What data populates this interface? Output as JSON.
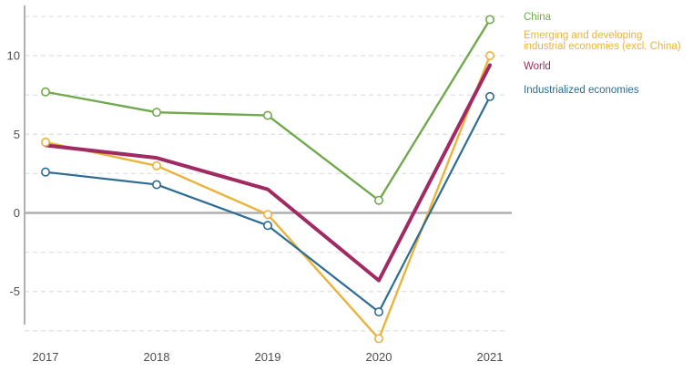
{
  "chart_data": {
    "type": "line",
    "title": "",
    "xlabel": "",
    "ylabel": "",
    "x_labels": [
      "2017",
      "2018",
      "2019",
      "2020",
      "2021"
    ],
    "y_tick_labels": [
      {
        "value": 10,
        "label": "10"
      },
      {
        "value": 5,
        "label": "5"
      },
      {
        "value": 0,
        "label": "0"
      },
      {
        "value": -5,
        "label": "-5"
      }
    ],
    "gridlines": [
      12.5,
      10,
      7.5,
      5,
      2.5,
      -2.5,
      -5,
      -7.5
    ],
    "ylim": [
      -8.5,
      13.5
    ],
    "grid": "dashed-horizontal",
    "legend_position": "right",
    "colors": {
      "grid": "#E2E2E2",
      "axis": "#B0B0B0",
      "tick_text": "#4D4D4D",
      "marker_fill": "#FFFFFF"
    },
    "series": [
      {
        "id": "china",
        "name": "China",
        "legend_lines": [
          "China"
        ],
        "color": "#72A94E",
        "line_width": 2.4,
        "markers": true,
        "values": [
          7.7,
          6.4,
          6.2,
          0.8,
          12.3
        ]
      },
      {
        "id": "emerging-excl-china",
        "name": "Emerging and developing industrial economies (excl. China)",
        "legend_lines": [
          "Emerging and developing",
          "industrial economies (excl. China)"
        ],
        "color": "#E9B43C",
        "line_width": 2.4,
        "markers": true,
        "values": [
          4.5,
          3.0,
          -0.1,
          -8.0,
          10.0
        ]
      },
      {
        "id": "world",
        "name": "World",
        "legend_lines": [
          "World"
        ],
        "color": "#A02B63",
        "line_width": 4,
        "markers": false,
        "values": [
          4.3,
          3.5,
          1.5,
          -4.3,
          9.4
        ]
      },
      {
        "id": "industrialized",
        "name": "Industrialized economies",
        "legend_lines": [
          "Industrialized economies"
        ],
        "color": "#2E6D91",
        "line_width": 2.2,
        "markers": true,
        "values": [
          2.6,
          1.8,
          -0.8,
          -6.3,
          7.4
        ]
      }
    ]
  }
}
